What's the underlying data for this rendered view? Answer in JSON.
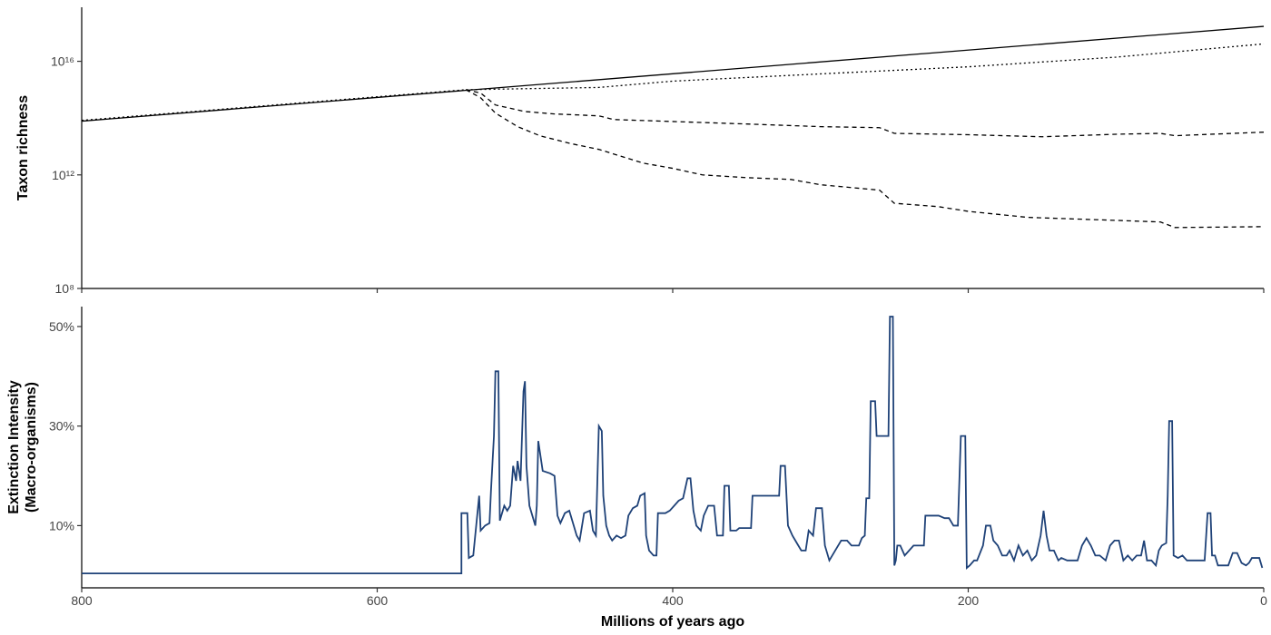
{
  "chart_data": [
    {
      "type": "line",
      "ylabel": "Taxon richness",
      "log_y": true,
      "xlim": [
        800,
        0
      ],
      "xticks": [
        800,
        600,
        400,
        200,
        0
      ],
      "ylim": [
        100000000.0,
        8e+17
      ],
      "yticks": [
        {
          "value": 100000000.0,
          "label": "10⁸"
        },
        {
          "value": 1000000000000.0,
          "label": "10¹²"
        },
        {
          "value": 1e+16,
          "label": "10¹⁶"
        }
      ],
      "series": [
        {
          "color": "#000000",
          "dash": "solid",
          "x": [
            800,
            0
          ],
          "values": [
            78000000000000.0,
            1.7e+17
          ]
        },
        {
          "color": "#000000",
          "dash": "dotted",
          "x": [
            800,
            540,
            450,
            400,
            300,
            200,
            100,
            0
          ],
          "values": [
            83000000000000.0,
            1000000000000000.0,
            1200000000000000.0,
            2000000000000000.0,
            3600000000000000.0,
            6400000000000000.0,
            1.4e+16,
            4.1e+16
          ]
        },
        {
          "color": "#000000",
          "dash": "dashed",
          "x": [
            540,
            530,
            520,
            500,
            480,
            450,
            440,
            350,
            300,
            260,
            250,
            200,
            150,
            100,
            70,
            60,
            0
          ],
          "values": [
            1000000000000000.0,
            760000000000000.0,
            290000000000000.0,
            170000000000000.0,
            140000000000000.0,
            120000000000000.0,
            89000000000000.0,
            62000000000000.0,
            50000000000000.0,
            46000000000000.0,
            29000000000000.0,
            26000000000000.0,
            22000000000000.0,
            27000000000000.0,
            29000000000000.0,
            24000000000000.0,
            32000000000000.0
          ]
        },
        {
          "color": "#000000",
          "dash": "dashed",
          "x": [
            540,
            530,
            520,
            505,
            490,
            470,
            450,
            420,
            400,
            380,
            350,
            320,
            300,
            260,
            250,
            220,
            200,
            160,
            100,
            70,
            60,
            0
          ],
          "values": [
            1000000000000000.0,
            520000000000000.0,
            150000000000000.0,
            50000000000000.0,
            24000000000000.0,
            13000000000000.0,
            7900000000000.0,
            2600000000000.0,
            1700000000000.0,
            1000000000000.0,
            800000000000.0,
            690000000000.0,
            450000000000.0,
            290000000000.0,
            100000000000.0,
            76000000000.0,
            52000000000.0,
            32000000000.0,
            25000000000.0,
            22000000000.0,
            14000000000.0,
            15000000000.0
          ]
        }
      ]
    },
    {
      "type": "line",
      "ylabel": [
        "Extinction Intensity",
        "(Macro-organisms)"
      ],
      "xlabel": "Millions of years ago",
      "xlim": [
        800,
        0
      ],
      "xticks": [
        800,
        600,
        400,
        200,
        0
      ],
      "ylim": [
        -2.5,
        54
      ],
      "yticks": [
        {
          "value": 10,
          "label": "10%"
        },
        {
          "value": 30,
          "label": "30%"
        },
        {
          "value": 50,
          "label": "50%"
        }
      ],
      "series": [
        {
          "color": "#1f4278",
          "dash": "solid",
          "x": [
            800,
            543,
            543,
            539,
            538,
            535,
            533,
            531,
            530,
            527,
            524,
            523,
            521,
            520,
            518,
            517,
            514,
            512,
            510,
            508,
            506,
            505,
            503,
            501,
            500,
            499,
            497,
            495,
            493,
            492,
            491,
            490,
            488,
            483,
            480,
            478,
            476,
            473,
            470,
            467,
            465,
            463,
            460,
            456,
            454,
            452,
            450,
            448,
            447,
            445,
            443,
            441,
            438,
            435,
            432,
            430,
            427,
            424,
            422,
            419,
            418,
            416,
            413,
            411,
            410,
            405,
            402,
            399,
            396,
            393,
            390,
            388,
            386,
            384,
            381,
            379,
            376,
            372,
            370,
            366,
            365,
            362,
            361,
            357,
            355,
            350,
            347,
            346,
            338,
            328,
            327,
            324,
            322,
            319,
            317,
            315,
            313,
            310,
            308,
            305,
            303,
            299,
            297,
            294,
            290,
            286,
            282,
            279,
            274,
            272,
            270,
            269,
            267,
            266,
            263,
            262,
            254,
            253,
            251,
            250,
            249,
            248,
            246,
            243,
            240,
            237,
            233,
            230,
            229,
            220,
            216,
            213,
            210,
            207,
            205,
            202,
            201,
            199,
            196,
            194,
            190,
            188,
            185,
            183,
            180,
            177,
            174,
            172,
            169,
            166,
            163,
            160,
            157,
            154,
            151,
            149,
            147,
            145,
            142,
            139,
            137,
            133,
            130,
            126,
            123,
            120,
            117,
            114,
            111,
            107,
            104,
            101,
            98,
            95,
            92,
            89,
            86,
            83,
            81,
            79,
            76,
            73,
            71,
            69,
            66,
            65,
            64,
            62,
            61,
            58,
            55,
            52,
            48,
            44,
            40,
            38,
            36,
            35,
            33,
            31,
            28,
            24,
            21,
            18,
            15,
            12,
            10,
            8,
            5,
            3,
            1
          ],
          "values": [
            0.4,
            0.4,
            12.5,
            12.5,
            3.5,
            4,
            10,
            16,
            9,
            10,
            10.5,
            17,
            28,
            41,
            41,
            11,
            14,
            13,
            14,
            22,
            19,
            23,
            19,
            37,
            39,
            22,
            14,
            12,
            10,
            14,
            27,
            25,
            21,
            20.5,
            20,
            12,
            10.5,
            12.5,
            13,
            10,
            8,
            7,
            12.5,
            13,
            9,
            8,
            30,
            29,
            16,
            10,
            8,
            7,
            8,
            7.5,
            8,
            12,
            13.5,
            14,
            16,
            16.5,
            8,
            5,
            4,
            4,
            12.5,
            12.5,
            13,
            14,
            15,
            15.5,
            19.5,
            19.5,
            13,
            10,
            9,
            12,
            14,
            14,
            8,
            8,
            18,
            18,
            9,
            9,
            9.5,
            9.5,
            9.5,
            16,
            16,
            16,
            22,
            22,
            10,
            8,
            7,
            6,
            5,
            5,
            9,
            8,
            13.5,
            13.5,
            6,
            3,
            5,
            7,
            7,
            6,
            6,
            7.5,
            8,
            15.5,
            15.5,
            35,
            35,
            28,
            28,
            52,
            52,
            2,
            3,
            6,
            6,
            4,
            5,
            6,
            6,
            6,
            12,
            12,
            11.5,
            11.5,
            10,
            10,
            28,
            28,
            1.5,
            2,
            3,
            3,
            6,
            10,
            10,
            7,
            6,
            4,
            4,
            5,
            3,
            6,
            4,
            5,
            3,
            4,
            8,
            13,
            8,
            5,
            5,
            3,
            3.5,
            3,
            3,
            3,
            6,
            7.5,
            6,
            4,
            4,
            3,
            6,
            7,
            7,
            3,
            4,
            3,
            4,
            4,
            7,
            3,
            3,
            2,
            5,
            6,
            6.5,
            16,
            31,
            31,
            4,
            3.5,
            4,
            3,
            3,
            3,
            3,
            12.5,
            12.5,
            4,
            4,
            2,
            2,
            2,
            4.5,
            4.5,
            2.5,
            2,
            2.5,
            3.5,
            3.5,
            3.5,
            1.5
          ]
        }
      ]
    }
  ]
}
